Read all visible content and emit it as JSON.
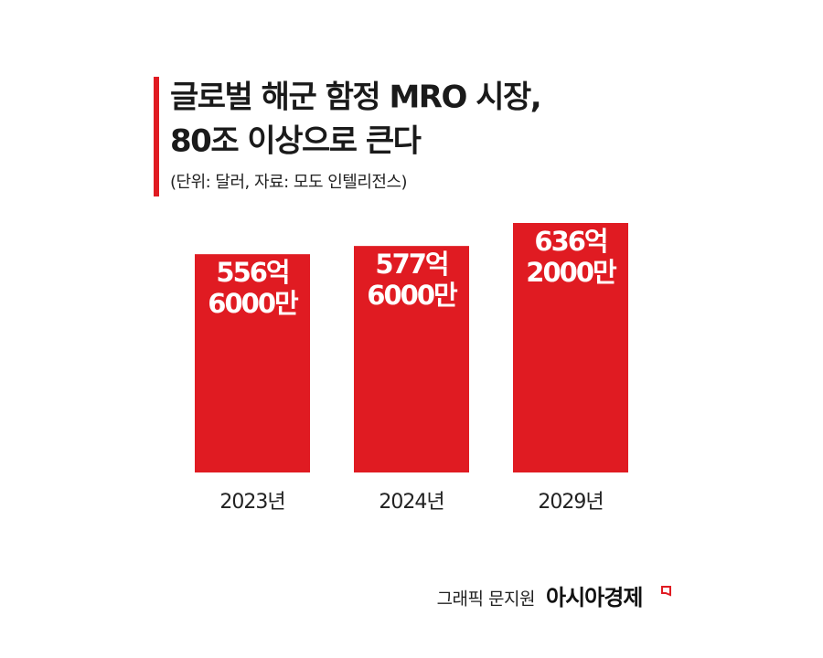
{
  "chart_data": {
    "type": "bar",
    "title": [
      "글로벌 해군 함정 MRO 시장,",
      "80조 이상으로 큰다"
    ],
    "subtitle": "(단위: 달러, 자료: 모도 인텔리전스)",
    "categories": [
      "2023년",
      "2024년",
      "2029년"
    ],
    "values": [
      55660000000,
      57760000000,
      63620000000
    ],
    "value_labels": [
      "556억\n6000만",
      "577억\n6000만",
      "636억\n2000만"
    ],
    "color": "#e01b22",
    "credit": "그래픽 문지원",
    "source": "아시아경제"
  }
}
